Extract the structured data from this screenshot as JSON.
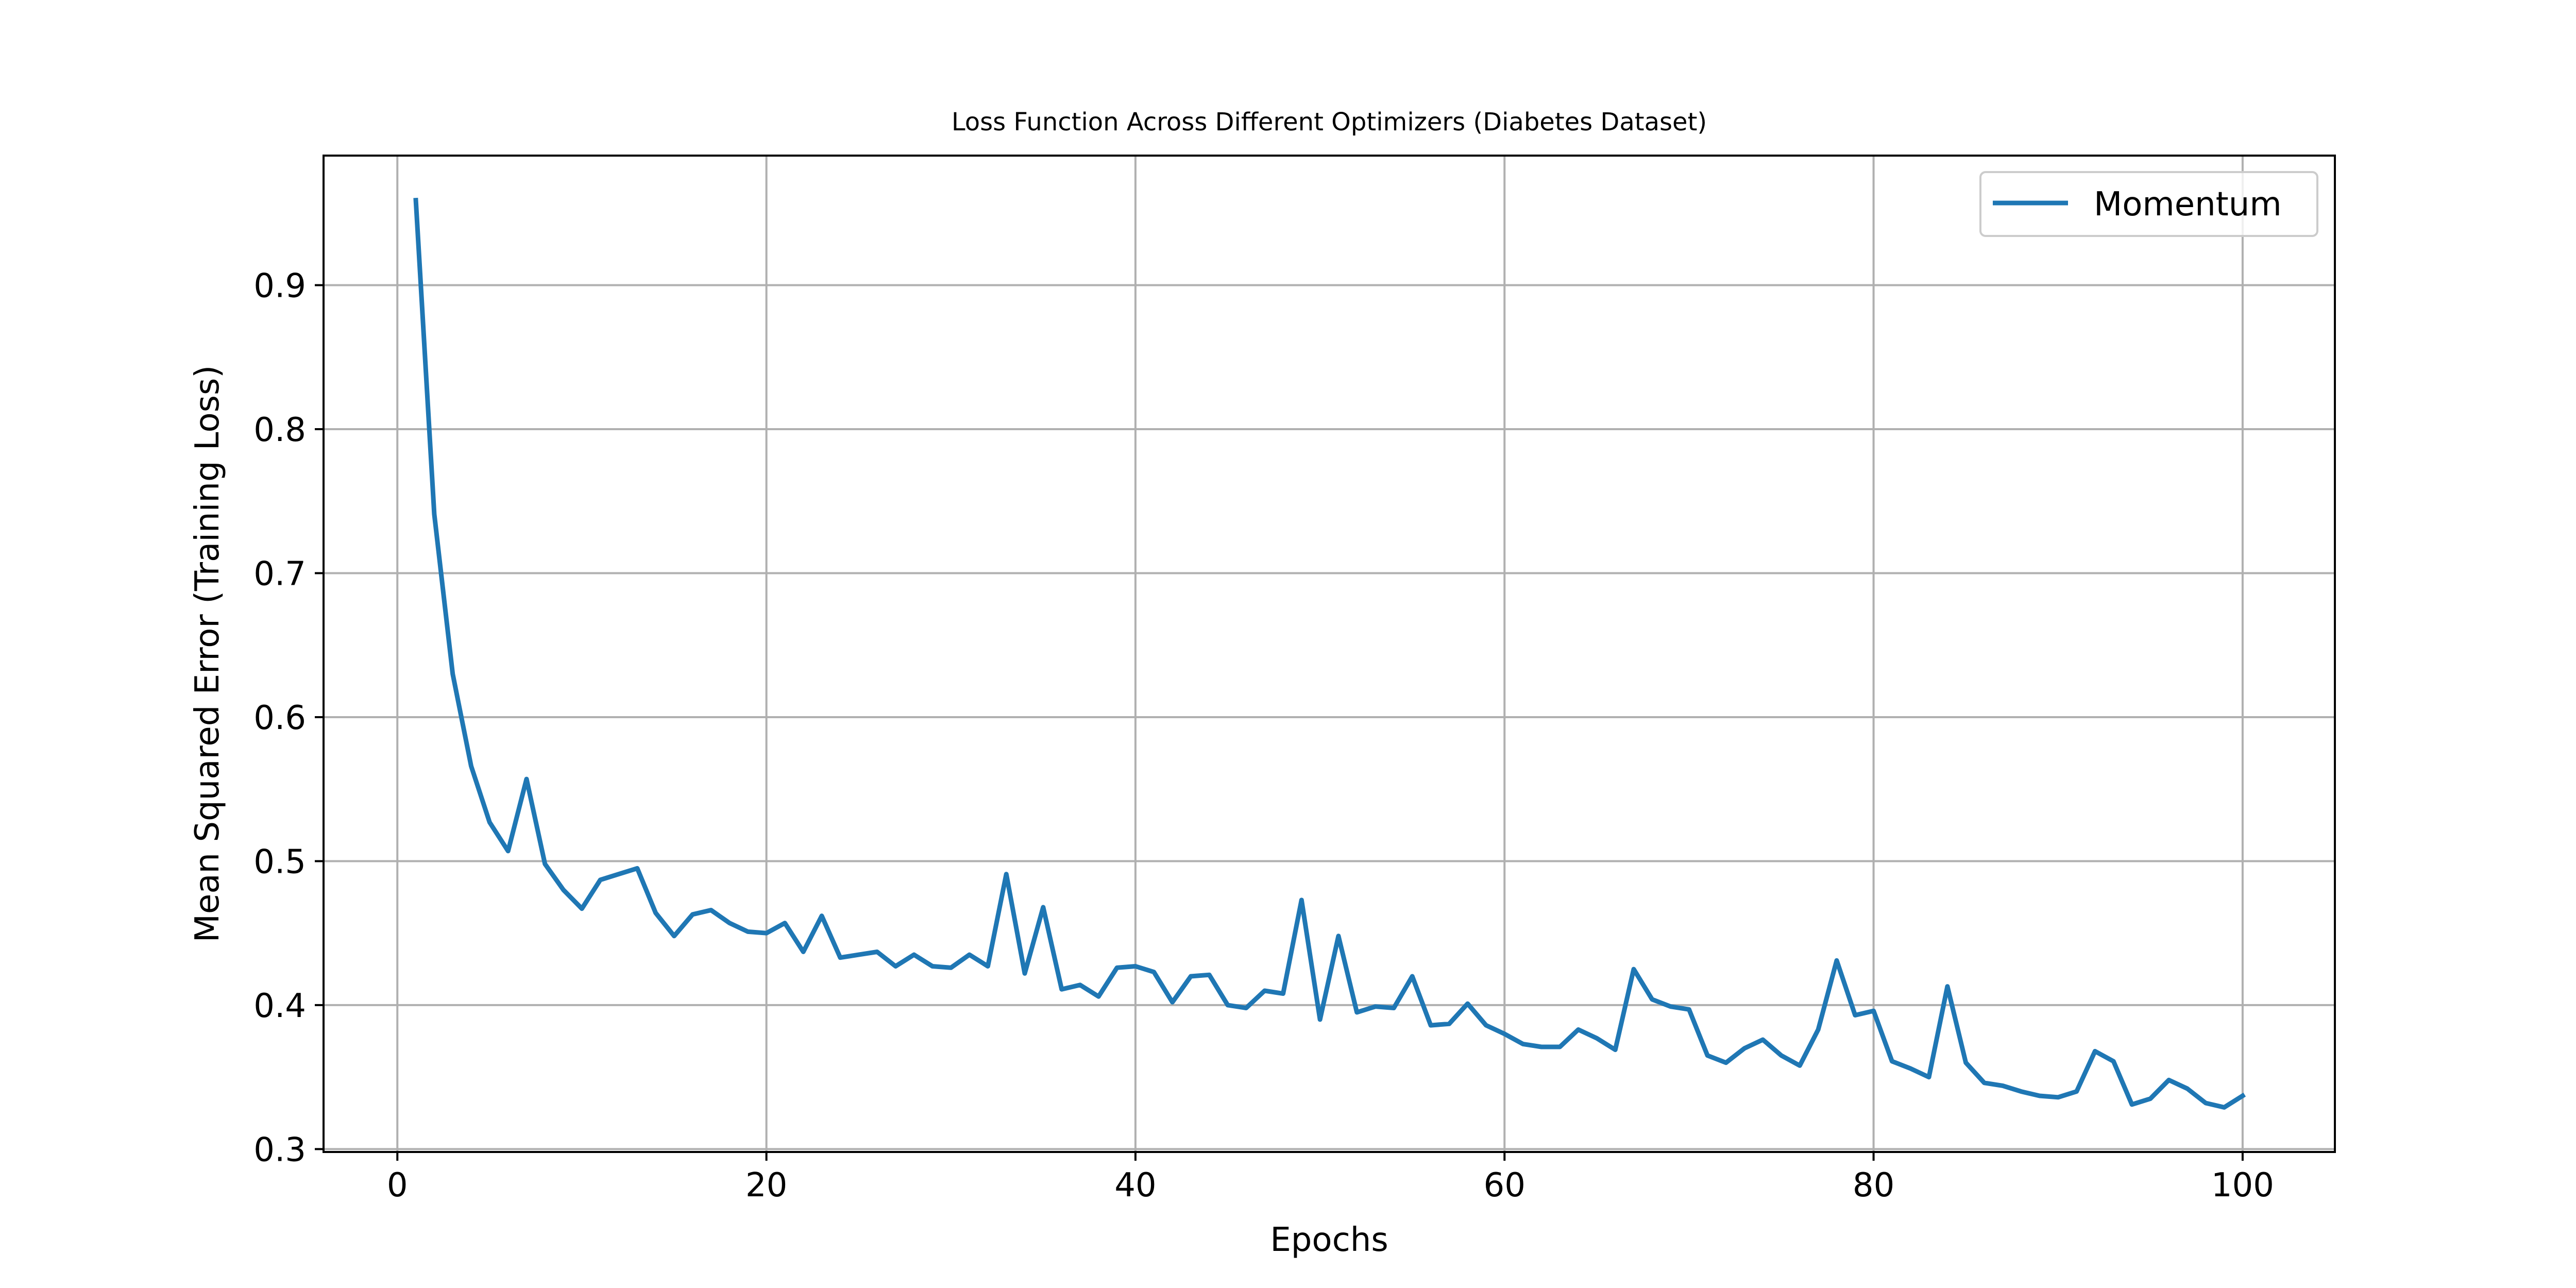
{
  "chart_data": {
    "type": "line",
    "title": "Loss Function Across Different Optimizers (Diabetes Dataset)",
    "xlabel": "Epochs",
    "ylabel": "Mean Squared Error (Training Loss)",
    "xlim": [
      -4,
      105
    ],
    "ylim": [
      0.298,
      0.99
    ],
    "xticks": [
      0,
      20,
      40,
      60,
      80,
      100
    ],
    "xtick_labels": [
      "0",
      "20",
      "40",
      "60",
      "80",
      "100"
    ],
    "yticks": [
      0.3,
      0.4,
      0.5,
      0.6,
      0.7,
      0.8,
      0.9
    ],
    "ytick_labels": [
      "0.3",
      "0.4",
      "0.5",
      "0.6",
      "0.7",
      "0.8",
      "0.9"
    ],
    "grid": true,
    "legend_position": "upper right",
    "series": [
      {
        "name": "Momentum",
        "color": "#1f77b4",
        "x": [
          1,
          2,
          3,
          4,
          5,
          6,
          7,
          8,
          9,
          10,
          11,
          12,
          13,
          14,
          15,
          16,
          17,
          18,
          19,
          20,
          21,
          22,
          23,
          24,
          25,
          26,
          27,
          28,
          29,
          30,
          31,
          32,
          33,
          34,
          35,
          36,
          37,
          38,
          39,
          40,
          41,
          42,
          43,
          44,
          45,
          46,
          47,
          48,
          49,
          50,
          51,
          52,
          53,
          54,
          55,
          56,
          57,
          58,
          59,
          60,
          61,
          62,
          63,
          64,
          65,
          66,
          67,
          68,
          69,
          70,
          71,
          72,
          73,
          74,
          75,
          76,
          77,
          78,
          79,
          80,
          81,
          82,
          83,
          84,
          85,
          86,
          87,
          88,
          89,
          90,
          91,
          92,
          93,
          94,
          95,
          96,
          97,
          98,
          99,
          100
        ],
        "values": [
          0.959,
          0.741,
          0.63,
          0.566,
          0.527,
          0.507,
          0.557,
          0.498,
          0.48,
          0.467,
          0.487,
          0.491,
          0.495,
          0.464,
          0.448,
          0.463,
          0.466,
          0.457,
          0.451,
          0.45,
          0.457,
          0.437,
          0.462,
          0.433,
          0.435,
          0.437,
          0.427,
          0.435,
          0.427,
          0.426,
          0.435,
          0.427,
          0.491,
          0.422,
          0.468,
          0.411,
          0.414,
          0.406,
          0.426,
          0.427,
          0.423,
          0.402,
          0.42,
          0.421,
          0.4,
          0.398,
          0.41,
          0.408,
          0.473,
          0.39,
          0.448,
          0.395,
          0.399,
          0.398,
          0.42,
          0.386,
          0.387,
          0.401,
          0.386,
          0.38,
          0.373,
          0.371,
          0.371,
          0.383,
          0.377,
          0.369,
          0.425,
          0.404,
          0.399,
          0.397,
          0.365,
          0.36,
          0.37,
          0.376,
          0.365,
          0.358,
          0.383,
          0.431,
          0.393,
          0.396,
          0.361,
          0.356,
          0.35,
          0.413,
          0.36,
          0.346,
          0.344,
          0.34,
          0.337,
          0.336,
          0.34,
          0.368,
          0.361,
          0.331,
          0.335,
          0.348,
          0.342,
          0.332,
          0.329,
          0.337
        ]
      }
    ]
  }
}
